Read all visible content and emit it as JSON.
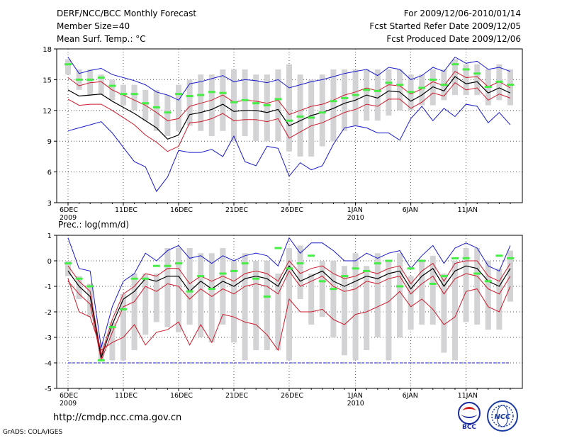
{
  "header": {
    "title": "DERF/NCC/BCC Monthly Forecast",
    "member": "Member Size=40",
    "variable": "Mean Surf. Temp.: °C",
    "period": "For 2009/12/06-2010/01/14",
    "started": "Fcst Started Refer Date 2009/12/05",
    "produced": "Fcst Produced Date 2009/12/06"
  },
  "footer": {
    "url": "http://cmdp.ncc.cma.gov.cn",
    "grads": "GrADS: COLA/IGES",
    "logo_bcc_text": "BCC",
    "logo_ncc_text": "NCC"
  },
  "colors": {
    "max_line": "#1a1acc",
    "ptile_line": "#cc1a2a",
    "mean_line": "#000000",
    "box": "#d3d3d6",
    "obs_marker": "#44ee44",
    "grid": "#555555"
  },
  "chart_data": [
    {
      "type": "line",
      "title": "Mean Surf. Temp.: °C",
      "ylim": [
        3,
        18
      ],
      "yticks": [
        3,
        6,
        9,
        12,
        15,
        18
      ],
      "xticks": [
        {
          "day": 0,
          "label": "6DEC",
          "sub": "2009"
        },
        {
          "day": 5,
          "label": "11DEC"
        },
        {
          "day": 10,
          "label": "16DEC"
        },
        {
          "day": 15,
          "label": "21DEC"
        },
        {
          "day": 20,
          "label": "26DEC"
        },
        {
          "day": 26,
          "label": "1JAN",
          "sub": "2010"
        },
        {
          "day": 31,
          "label": "6JAN"
        },
        {
          "day": 36,
          "label": "11JAN"
        }
      ],
      "series": [
        {
          "name": "max",
          "role": "max",
          "values": [
            17.2,
            15.6,
            15.9,
            16.1,
            15.5,
            15.2,
            14.9,
            14.5,
            13.8,
            13.5,
            13.0,
            14.6,
            14.8,
            15.1,
            15.4,
            14.8,
            15.0,
            14.9,
            14.7,
            15.0,
            14.2,
            14.5,
            14.8,
            15.0,
            15.3,
            15.6,
            15.8,
            16.0,
            15.4,
            16.2,
            16.0,
            15.0,
            15.4,
            16.2,
            15.8,
            17.2,
            16.6,
            16.8,
            16.0,
            16.2,
            15.8
          ]
        },
        {
          "name": "p75",
          "role": "ptile",
          "values": [
            15.2,
            14.4,
            14.7,
            14.8,
            14.0,
            13.5,
            13.0,
            12.5,
            11.8,
            11.0,
            11.2,
            12.4,
            12.7,
            13.0,
            13.5,
            12.8,
            13.0,
            12.9,
            12.7,
            13.0,
            11.6,
            12.0,
            12.4,
            12.6,
            13.0,
            13.5,
            13.8,
            14.2,
            13.9,
            14.5,
            14.4,
            13.6,
            14.1,
            14.8,
            14.4,
            15.8,
            15.2,
            15.3,
            14.3,
            14.8,
            14.2
          ]
        },
        {
          "name": "mean",
          "role": "mean",
          "values": [
            14.0,
            13.4,
            13.5,
            13.6,
            12.9,
            12.3,
            11.7,
            11.0,
            10.3,
            9.2,
            9.6,
            11.6,
            11.8,
            12.1,
            12.6,
            11.9,
            12.0,
            12.0,
            11.8,
            12.1,
            10.5,
            11.0,
            11.5,
            11.8,
            12.2,
            12.7,
            13.0,
            13.5,
            13.2,
            13.9,
            13.8,
            12.9,
            13.5,
            14.3,
            13.9,
            15.3,
            14.6,
            14.8,
            13.7,
            14.2,
            13.7
          ]
        },
        {
          "name": "p25",
          "role": "ptile",
          "values": [
            13.1,
            12.5,
            12.6,
            12.6,
            12.0,
            11.3,
            10.6,
            9.6,
            8.9,
            8.0,
            8.5,
            10.8,
            10.9,
            11.2,
            11.7,
            11.0,
            11.1,
            11.1,
            10.9,
            11.2,
            9.3,
            9.9,
            10.5,
            10.8,
            11.3,
            11.8,
            12.1,
            12.6,
            12.4,
            13.1,
            13.1,
            12.2,
            12.8,
            13.7,
            13.4,
            14.7,
            14.0,
            14.2,
            13.0,
            13.6,
            13.2
          ]
        },
        {
          "name": "min",
          "role": "max",
          "values": [
            10.0,
            10.3,
            10.6,
            10.9,
            9.8,
            8.4,
            7.0,
            6.5,
            4.1,
            5.5,
            8.1,
            7.9,
            7.9,
            8.2,
            7.5,
            9.5,
            7.0,
            6.6,
            8.5,
            8.3,
            5.6,
            6.9,
            6.2,
            6.6,
            8.7,
            10.3,
            10.5,
            10.3,
            9.8,
            9.8,
            9.1,
            11.2,
            12.4,
            11.0,
            12.2,
            11.4,
            12.6,
            12.4,
            10.8,
            11.8,
            10.6
          ]
        }
      ],
      "boxes": [
        [
          15.5,
          17.0
        ],
        [
          14.0,
          16.0
        ],
        [
          13.5,
          16.0
        ],
        [
          13.5,
          15.5
        ],
        [
          13.0,
          15.0
        ],
        [
          12.5,
          14.5
        ],
        [
          12.0,
          14.5
        ],
        [
          11.0,
          14.0
        ],
        [
          10.0,
          14.0
        ],
        [
          9.5,
          13.5
        ],
        [
          10.0,
          14.5
        ],
        [
          10.5,
          15.0
        ],
        [
          10.0,
          15.5
        ],
        [
          9.5,
          15.5
        ],
        [
          10.0,
          16.0
        ],
        [
          9.0,
          16.0
        ],
        [
          9.5,
          16.0
        ],
        [
          9.0,
          15.5
        ],
        [
          9.0,
          15.5
        ],
        [
          9.0,
          16.0
        ],
        [
          8.0,
          16.5
        ],
        [
          7.5,
          15.5
        ],
        [
          7.5,
          15.0
        ],
        [
          8.5,
          15.5
        ],
        [
          9.0,
          16.0
        ],
        [
          10.0,
          16.0
        ],
        [
          10.5,
          16.0
        ],
        [
          11.0,
          16.0
        ],
        [
          11.0,
          16.0
        ],
        [
          11.5,
          16.0
        ],
        [
          12.0,
          16.0
        ],
        [
          12.0,
          15.5
        ],
        [
          12.5,
          15.5
        ],
        [
          12.5,
          16.0
        ],
        [
          13.0,
          16.0
        ],
        [
          13.5,
          17.0
        ],
        [
          13.5,
          16.5
        ],
        [
          13.5,
          16.5
        ],
        [
          12.5,
          16.0
        ],
        [
          13.0,
          16.5
        ],
        [
          12.5,
          16.0
        ]
      ],
      "obs": [
        16.5,
        15.0,
        15.0,
        15.2,
        14.4,
        13.6,
        13.6,
        12.7,
        12.3,
        11.8,
        13.6,
        13.4,
        13.5,
        13.8,
        13.7,
        12.8,
        13.0,
        12.7,
        12.5,
        13.1,
        11.0,
        11.4,
        11.3,
        11.8,
        12.9,
        13.2,
        13.5,
        14.0,
        13.9,
        14.7,
        14.5,
        13.8,
        14.2,
        15.0,
        14.5,
        16.5,
        16.0,
        15.6,
        14.3,
        14.8,
        14.5
      ]
    },
    {
      "type": "line",
      "title": "Prec.: log(mm/d)",
      "ylim": [
        -5,
        1
      ],
      "yticks": [
        -5,
        -4,
        -3,
        -2,
        -1,
        0,
        1
      ],
      "xticks": [
        {
          "day": 0,
          "label": "6DEC",
          "sub": "2009"
        },
        {
          "day": 5,
          "label": "11DEC"
        },
        {
          "day": 10,
          "label": "16DEC"
        },
        {
          "day": 15,
          "label": "21DEC"
        },
        {
          "day": 20,
          "label": "26DEC"
        },
        {
          "day": 26,
          "label": "1JAN",
          "sub": "2010"
        },
        {
          "day": 31,
          "label": "6JAN"
        },
        {
          "day": 36,
          "label": "11JAN"
        }
      ],
      "series": [
        {
          "name": "max",
          "role": "max",
          "values": [
            0.9,
            -0.3,
            -0.4,
            -3.4,
            -1.8,
            -0.8,
            -0.5,
            0.3,
            0.0,
            0.4,
            0.6,
            0.1,
            0.2,
            -0.1,
            0.2,
            0.0,
            0.2,
            0.3,
            0.2,
            -0.2,
            0.9,
            0.3,
            0.7,
            0.7,
            0.4,
            0.0,
            0.0,
            0.3,
            0.1,
            0.3,
            0.4,
            -0.3,
            0.2,
            0.6,
            -0.1,
            0.5,
            0.7,
            0.5,
            -0.2,
            -0.4,
            0.6
          ]
        },
        {
          "name": "p75",
          "role": "ptile",
          "values": [
            -0.2,
            -0.8,
            -1.2,
            -3.7,
            -2.3,
            -1.3,
            -1.0,
            -0.5,
            -0.6,
            -0.3,
            -0.3,
            -0.9,
            -0.6,
            -0.8,
            -0.6,
            -0.8,
            -0.5,
            -0.4,
            -0.5,
            -0.8,
            0.0,
            -0.5,
            -0.3,
            -0.2,
            -0.5,
            -0.7,
            -0.6,
            -0.4,
            -0.5,
            -0.3,
            -0.2,
            -0.9,
            -0.4,
            -0.1,
            -0.8,
            -0.1,
            0.0,
            0.0,
            -0.6,
            -0.8,
            -0.1
          ]
        },
        {
          "name": "mean",
          "role": "mean",
          "values": [
            -0.4,
            -1.0,
            -1.4,
            -3.8,
            -2.5,
            -1.5,
            -1.2,
            -0.7,
            -0.8,
            -0.6,
            -0.6,
            -1.2,
            -0.8,
            -1.1,
            -0.8,
            -1.0,
            -0.7,
            -0.6,
            -0.7,
            -1.0,
            -0.2,
            -0.8,
            -0.6,
            -0.4,
            -0.8,
            -1.0,
            -0.8,
            -0.6,
            -0.7,
            -0.5,
            -0.4,
            -1.1,
            -0.6,
            -0.3,
            -1.0,
            -0.4,
            -0.2,
            -0.3,
            -0.8,
            -1.0,
            -0.3
          ]
        },
        {
          "name": "p25",
          "role": "ptile",
          "values": [
            -0.8,
            -1.3,
            -1.7,
            -3.9,
            -2.8,
            -1.8,
            -1.6,
            -1.0,
            -1.2,
            -0.9,
            -1.0,
            -1.5,
            -1.1,
            -1.4,
            -1.1,
            -1.3,
            -1.0,
            -0.9,
            -1.0,
            -1.3,
            -0.4,
            -1.0,
            -0.8,
            -0.6,
            -1.0,
            -1.2,
            -1.1,
            -0.8,
            -0.9,
            -0.7,
            -0.6,
            -1.3,
            -0.9,
            -0.6,
            -1.3,
            -0.7,
            -0.5,
            -0.6,
            -1.1,
            -1.3,
            -0.6
          ]
        },
        {
          "name": "min",
          "role": "ptile",
          "values": [
            -0.7,
            -2.0,
            -2.2,
            -3.5,
            -3.2,
            -3.0,
            -2.5,
            -3.3,
            -2.8,
            -2.7,
            -2.4,
            -3.3,
            -2.5,
            -3.2,
            -2.1,
            -2.2,
            -2.4,
            -2.5,
            -2.9,
            -3.5,
            -1.5,
            -2.0,
            -2.0,
            -1.9,
            -2.3,
            -2.5,
            -2.1,
            -2.0,
            -1.8,
            -1.6,
            -1.2,
            -1.8,
            -1.5,
            -1.9,
            -2.5,
            -2.2,
            -1.2,
            -1.1,
            -1.8,
            -2.0,
            -1.0
          ]
        },
        {
          "name": "floor",
          "role": "max",
          "values": [
            -4.0,
            -4.0,
            -4.0,
            -4.0,
            -4.0,
            -4.0,
            -4.0,
            -4.0,
            -4.0,
            -4.0,
            -4.0,
            -4.0,
            -4.0,
            -4.0,
            -4.0,
            -4.0,
            -4.0,
            -4.0,
            -4.0,
            -4.0,
            -4.0,
            -4.0,
            -4.0,
            -4.0,
            -4.0,
            -4.0,
            -4.0,
            -4.0,
            -4.0,
            -4.0,
            -4.0,
            -4.0,
            -4.0,
            -4.0,
            -4.0,
            -4.0,
            -4.0,
            -4.0,
            -4.0,
            -4.0,
            -4.0
          ]
        }
      ],
      "boxes": [
        [
          -0.6,
          0.0
        ],
        [
          -1.5,
          -0.6
        ],
        [
          -2.2,
          -0.9
        ],
        [
          -3.9,
          -3.2
        ],
        [
          -3.9,
          -2.4
        ],
        [
          -3.9,
          -1.3
        ],
        [
          -3.5,
          -0.5
        ],
        [
          -2.9,
          -0.5
        ],
        [
          -2.4,
          -0.5
        ],
        [
          -2.6,
          0.5
        ],
        [
          -2.8,
          0.5
        ],
        [
          -2.5,
          0.5
        ],
        [
          -3.0,
          0.3
        ],
        [
          -3.2,
          0.3
        ],
        [
          -2.5,
          0.5
        ],
        [
          -3.2,
          0.0
        ],
        [
          -3.9,
          0.3
        ],
        [
          -3.5,
          0.0
        ],
        [
          -3.5,
          0.0
        ],
        [
          -3.5,
          -0.5
        ],
        [
          -3.9,
          0.5
        ],
        [
          -1.5,
          0.6
        ],
        [
          -2.5,
          -0.5
        ],
        [
          -2.2,
          0.0
        ],
        [
          -3.0,
          0.0
        ],
        [
          -3.7,
          -0.2
        ],
        [
          -3.9,
          0.3
        ],
        [
          -3.5,
          -0.2
        ],
        [
          -3.0,
          0.3
        ],
        [
          -3.9,
          0.0
        ],
        [
          -3.0,
          0.3
        ],
        [
          -2.7,
          -0.6
        ],
        [
          -2.5,
          0.0
        ],
        [
          -2.5,
          0.2
        ],
        [
          -3.6,
          -0.5
        ],
        [
          -3.9,
          0.0
        ],
        [
          -2.4,
          0.5
        ],
        [
          -2.5,
          0.5
        ],
        [
          -2.7,
          0.0
        ],
        [
          -2.7,
          -0.3
        ],
        [
          -1.6,
          0.4
        ]
      ],
      "obs": [
        -0.1,
        -0.7,
        -1.0,
        -3.9,
        -2.6,
        -1.9,
        -0.7,
        -0.7,
        -0.2,
        -0.2,
        -0.1,
        -1.2,
        -0.6,
        -1.1,
        -0.5,
        -0.4,
        -0.1,
        -0.7,
        -1.4,
        0.5,
        -0.3,
        -0.1,
        0.2,
        -0.8,
        -1.1,
        -0.6,
        -0.3,
        -0.4,
        -0.1,
        0.0,
        -1.0,
        -0.3,
        0.0,
        -0.9,
        -0.6,
        0.1,
        0.1,
        -0.5,
        -0.8,
        0.2,
        0.1
      ]
    }
  ]
}
